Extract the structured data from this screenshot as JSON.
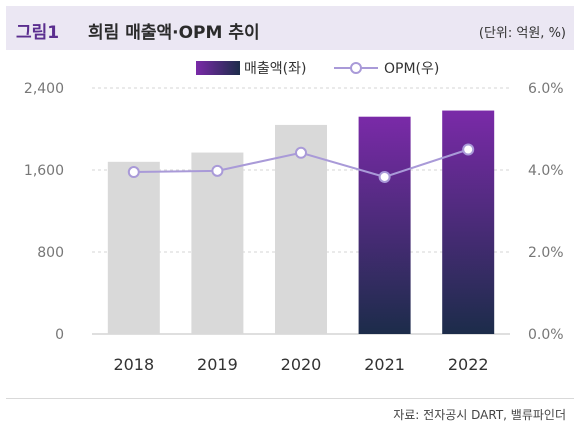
{
  "header": {
    "figure_number": "그림1",
    "title": "희림 매출액·OPM 추이",
    "unit": "(단위: 억원, %)"
  },
  "source": "자료: 전자공시 DART, 밸류파인더",
  "colors": {
    "bar_past": "#d9d9d9",
    "bar_recent_top": "#7a2aa8",
    "bar_recent_bottom": "#1c2c4a",
    "line": "#a99ad8",
    "marker_fill": "#ffffff",
    "axis_text": "#777777",
    "category_text": "#333333"
  },
  "chart_data": {
    "type": "bar+line",
    "categories": [
      "2018",
      "2019",
      "2020",
      "2021",
      "2022"
    ],
    "series": [
      {
        "name": "매출액(좌)",
        "axis": "left",
        "kind": "bar",
        "values": [
          1680,
          1770,
          2040,
          2120,
          2180
        ],
        "highlight_from_index": 3
      },
      {
        "name": "OPM(우)",
        "axis": "right",
        "kind": "line",
        "values": [
          3.95,
          3.98,
          4.42,
          3.83,
          4.5
        ]
      }
    ],
    "left_axis": {
      "ylim": [
        0,
        2400
      ],
      "ticks": [
        "0",
        "800",
        "1,600",
        "2,400"
      ],
      "tick_values": [
        0,
        800,
        1600,
        2400
      ]
    },
    "right_axis": {
      "ylim": [
        0,
        6
      ],
      "ticks": [
        "0.0%",
        "2.0%",
        "4.0%",
        "6.0%"
      ],
      "tick_values": [
        0,
        2,
        4,
        6
      ]
    },
    "grid": true,
    "legend": "top-center"
  }
}
